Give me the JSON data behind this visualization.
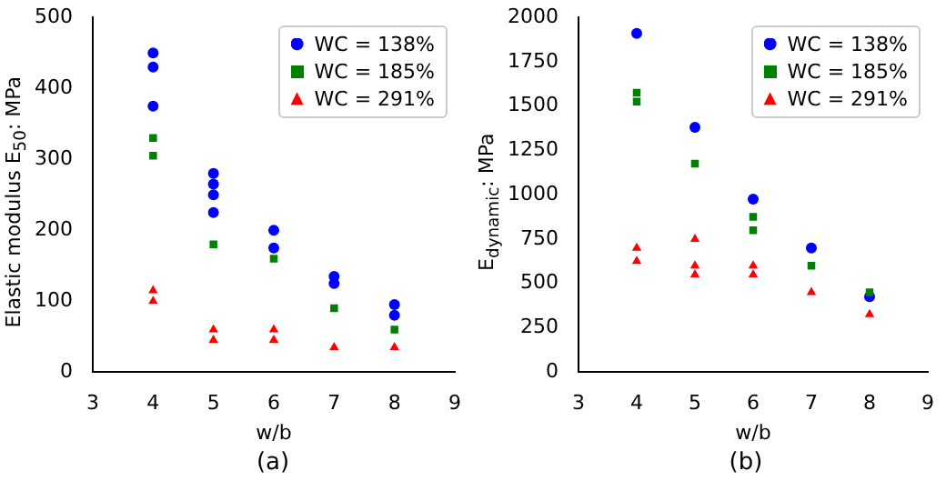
{
  "chart_data": [
    {
      "type": "scatter",
      "xlabel": "w/b",
      "ylabel": "Elastic modulus E$_{50}$: MPa",
      "annotations": [
        "(a)"
      ],
      "xlim": [
        3,
        9
      ],
      "xticks": [
        3,
        4,
        5,
        6,
        7,
        8,
        9
      ],
      "ylim": [
        0,
        500
      ],
      "yticks": [
        0,
        100,
        200,
        300,
        400,
        500
      ],
      "legend": "top right",
      "grid": false,
      "series": [
        {
          "name": "WC = 138%",
          "color": "#0000ff",
          "marker": "circle",
          "x": [
            4,
            4,
            4,
            5,
            5,
            5,
            5,
            6,
            6,
            7,
            7,
            8,
            8
          ],
          "values": [
            450,
            430,
            375,
            280,
            265,
            250,
            225,
            200,
            175,
            135,
            125,
            95,
            80
          ]
        },
        {
          "name": "WC = 185%",
          "color": "#008000",
          "marker": "square",
          "x": [
            4,
            4,
            5,
            6,
            7,
            8
          ],
          "values": [
            330,
            305,
            180,
            160,
            90,
            60
          ]
        },
        {
          "name": "WC = 291%",
          "color": "#ff0000",
          "marker": "triangle",
          "x": [
            4,
            4,
            5,
            5,
            6,
            6,
            7,
            8
          ],
          "values": [
            115,
            100,
            60,
            45,
            60,
            45,
            35,
            35
          ]
        }
      ]
    },
    {
      "type": "scatter",
      "xlabel": "w/b",
      "ylabel": "E$_{dynamic}$: MPa",
      "annotations": [
        "(b)"
      ],
      "xlim": [
        3,
        9
      ],
      "xticks": [
        3,
        4,
        5,
        6,
        7,
        8,
        9
      ],
      "ylim": [
        0,
        2000
      ],
      "yticks": [
        0,
        250,
        500,
        750,
        1000,
        1250,
        1500,
        1750,
        2000
      ],
      "legend": "top right",
      "grid": false,
      "series": [
        {
          "name": "WC = 138%",
          "color": "#0000ff",
          "marker": "circle",
          "x": [
            4,
            5,
            6,
            7,
            8
          ],
          "values": [
            1910,
            1380,
            975,
            700,
            425
          ]
        },
        {
          "name": "WC = 185%",
          "color": "#008000",
          "marker": "square",
          "x": [
            4,
            4,
            5,
            6,
            6,
            7,
            8
          ],
          "values": [
            1575,
            1525,
            1175,
            875,
            800,
            600,
            450
          ]
        },
        {
          "name": "WC = 291%",
          "color": "#ff0000",
          "marker": "triangle",
          "x": [
            4,
            4,
            5,
            5,
            5,
            6,
            6,
            7,
            8
          ],
          "values": [
            700,
            625,
            750,
            600,
            550,
            600,
            550,
            450,
            325
          ]
        }
      ]
    }
  ]
}
